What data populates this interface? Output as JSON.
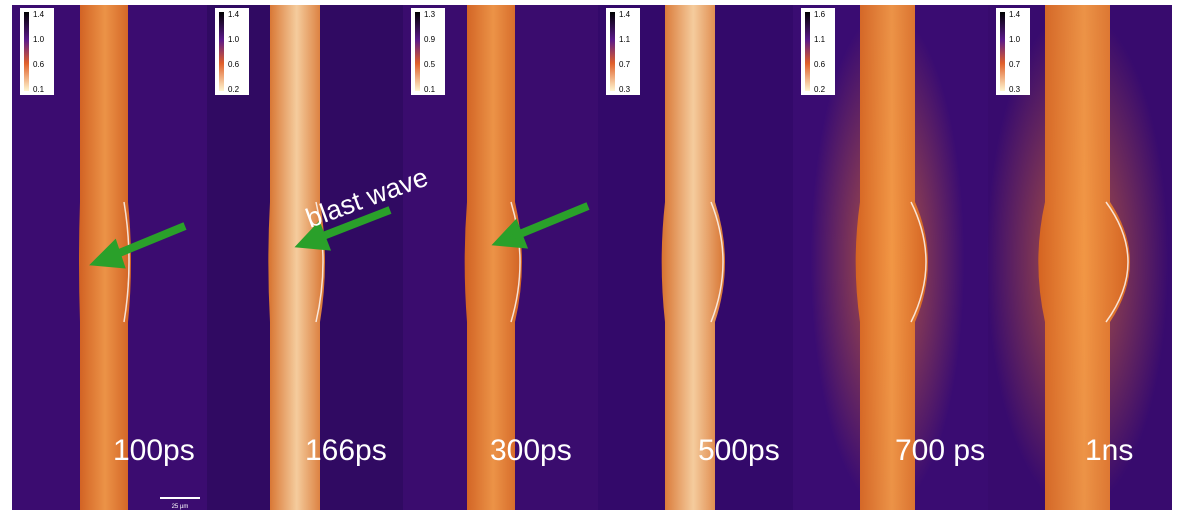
{
  "panels": [
    {
      "time": "100ps",
      "colorbar": [
        "1.4",
        "1.0",
        "0.6",
        "0.1"
      ]
    },
    {
      "time": "166ps",
      "colorbar": [
        "1.4",
        "1.0",
        "0.6",
        "0.2"
      ]
    },
    {
      "time": "300ps",
      "colorbar": [
        "1.3",
        "0.9",
        "0.5",
        "0.1"
      ]
    },
    {
      "time": "500ps",
      "colorbar": [
        "1.4",
        "1.1",
        "0.7",
        "0.3"
      ]
    },
    {
      "time": "700 ps",
      "colorbar": [
        "1.6",
        "1.1",
        "0.6",
        "0.2"
      ]
    },
    {
      "time": "1ns",
      "colorbar": [
        "1.4",
        "1.0",
        "0.7",
        "0.3"
      ]
    }
  ],
  "annotation": "blast wave",
  "scale_bar": "25 µm"
}
